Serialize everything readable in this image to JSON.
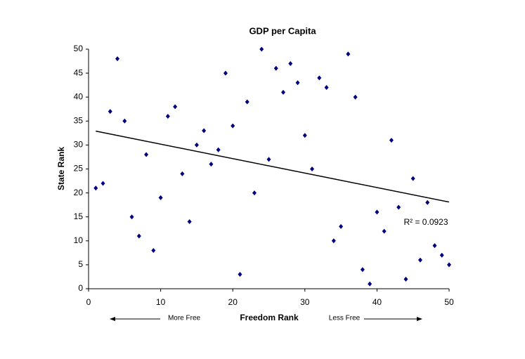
{
  "chart_data": {
    "type": "scatter",
    "title": "GDP per Capita",
    "x_label": "Freedom Rank",
    "y_label": "State Rank",
    "annotations": [
      "More Free",
      "Less Free",
      "R² = 0.0923"
    ],
    "x": [
      1,
      2,
      3,
      4,
      5,
      6,
      7,
      8,
      9,
      10,
      11,
      12,
      13,
      14,
      15,
      16,
      17,
      18,
      19,
      20,
      21,
      22,
      23,
      24,
      25,
      26,
      27,
      28,
      29,
      30,
      31,
      32,
      33,
      34,
      35,
      36,
      37,
      38,
      39,
      40,
      41,
      42,
      43,
      44,
      45,
      46,
      47,
      48,
      49,
      50
    ],
    "series": [
      {
        "name": "GDP per Capita",
        "color": "#000080",
        "values": [
          21,
          22,
          37,
          48,
          35,
          15,
          11,
          28,
          8,
          19,
          36,
          38,
          24,
          14,
          30,
          33,
          26,
          29,
          45,
          34,
          3,
          39,
          20,
          50,
          27,
          46,
          41,
          47,
          43,
          32,
          25,
          44,
          42,
          10,
          13,
          49,
          40,
          4,
          1,
          16,
          12,
          31,
          17,
          2,
          23,
          6,
          18,
          9,
          7,
          5
        ]
      }
    ],
    "trendline": {
      "x": [
        1,
        50
      ],
      "y": [
        32.9,
        18.1
      ],
      "color": "#000000"
    },
    "xlim": [
      0,
      50
    ],
    "ylim": [
      0,
      50
    ],
    "xticks": [
      0,
      10,
      20,
      30,
      40,
      50
    ],
    "yticks": [
      0,
      5,
      10,
      15,
      20,
      25,
      30,
      35,
      40,
      45,
      50
    ],
    "grid": false
  }
}
